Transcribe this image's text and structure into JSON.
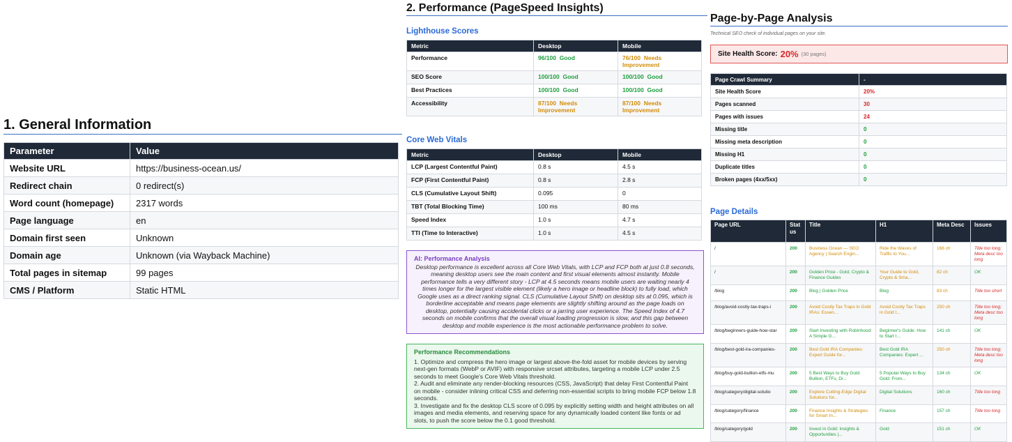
{
  "general": {
    "title": "1. General Information",
    "headers": [
      "Parameter",
      "Value"
    ],
    "rows": [
      [
        "Website URL",
        "https://business-ocean.us/"
      ],
      [
        "Redirect chain",
        "0 redirect(s)"
      ],
      [
        "Word count (homepage)",
        "2317 words"
      ],
      [
        "Page language",
        "en"
      ],
      [
        "Domain first seen",
        "Unknown"
      ],
      [
        "Domain age",
        "Unknown (via Wayback Machine)"
      ],
      [
        "Total pages in sitemap",
        "99 pages"
      ],
      [
        "CMS / Platform",
        "Static HTML"
      ]
    ]
  },
  "performance": {
    "title": "2. Performance (PageSpeed Insights)",
    "lighthouse": {
      "heading": "Lighthouse Scores",
      "headers": [
        "Metric",
        "Desktop",
        "Mobile"
      ],
      "rows": [
        [
          "Performance",
          {
            "score": "96/100",
            "rating": "Good",
            "color": "#1e9e3e"
          },
          {
            "score": "76/100",
            "rating": "Needs Improvement",
            "color": "#d18c0a"
          }
        ],
        [
          "SEO Score",
          {
            "score": "100/100",
            "rating": "Good",
            "color": "#1e9e3e"
          },
          {
            "score": "100/100",
            "rating": "Good",
            "color": "#1e9e3e"
          }
        ],
        [
          "Best Practices",
          {
            "score": "100/100",
            "rating": "Good",
            "color": "#1e9e3e"
          },
          {
            "score": "100/100",
            "rating": "Good",
            "color": "#1e9e3e"
          }
        ],
        [
          "Accessibility",
          {
            "score": "87/100",
            "rating": "Needs Improvement",
            "color": "#d18c0a"
          },
          {
            "score": "87/100",
            "rating": "Needs Improvement",
            "color": "#d18c0a"
          }
        ]
      ]
    },
    "vitals": {
      "heading": "Core Web Vitals",
      "headers": [
        "Metric",
        "Desktop",
        "Mobile"
      ],
      "rows": [
        [
          "LCP (Largest Contentful Paint)",
          "0.8 s",
          "4.5 s"
        ],
        [
          "FCP (First Contentful Paint)",
          "0.8 s",
          "2.8 s"
        ],
        [
          "CLS (Cumulative Layout Shift)",
          "0.095",
          "0"
        ],
        [
          "TBT (Total Blocking Time)",
          "100 ms",
          "80 ms"
        ],
        [
          "Speed Index",
          "1.0 s",
          "4.7 s"
        ],
        [
          "TTI (Time to Interactive)",
          "1.0 s",
          "4.5 s"
        ]
      ]
    },
    "ai": {
      "heading": "AI: Performance Analysis",
      "text": "Desktop performance is excellent across all Core Web Vitals, with LCP and FCP both at just 0.8 seconds, meaning desktop users see the main content and first visual elements almost instantly. Mobile performance tells a very different story - LCP at 4.5 seconds means mobile users are waiting nearly 4 times longer for the largest visible element (likely a hero image or headline block) to fully load, which Google uses as a direct ranking signal. CLS (Cumulative Layout Shift) on desktop sits at 0.095, which is borderline acceptable and means page elements are slightly shifting around as the page loads on desktop, potentially causing accidental clicks or a jarring user experience. The Speed Index of 4.7 seconds on mobile confirms that the overall visual loading progression is slow, and this gap between desktop and mobile experience is the most actionable performance problem to solve."
    },
    "recommendations": {
      "heading": "Performance Recommendations",
      "items": [
        "1. Optimize and compress the hero image or largest above-the-fold asset for mobile devices by serving next-gen formats (WebP or AVIF) with responsive srcset attributes, targeting a mobile LCP under 2.5 seconds to meet Google's Core Web Vitals threshold.",
        "2. Audit and eliminate any render-blocking resources (CSS, JavaScript) that delay First Contentful Paint on mobile - consider inlining critical CSS and deferring non-essential scripts to bring mobile FCP below 1.8 seconds.",
        "3. Investigate and fix the desktop CLS score of 0.095 by explicitly setting width and height attributes on all images and media elements, and reserving space for any dynamically loaded content like fonts or ad slots, to push the score below the 0.1 good threshold."
      ]
    }
  },
  "pages": {
    "title": "Page-by-Page Analysis",
    "subtitle": "Technical SEO check of individual pages on your site.",
    "health": {
      "label": "Site Health Score:",
      "value": "20%",
      "note": "(30 pages)"
    },
    "summary": {
      "headers": [
        "Page Crawl Summary",
        "-"
      ],
      "rows": [
        [
          "Site Health Score",
          "20%"
        ],
        [
          "Pages scanned",
          "30"
        ],
        [
          "Pages with issues",
          "24"
        ],
        [
          "Missing title",
          "0"
        ],
        [
          "Missing meta description",
          "0"
        ],
        [
          "Missing H1",
          "0"
        ],
        [
          "Duplicate titles",
          "0"
        ],
        [
          "Broken pages (4xx/5xx)",
          "0"
        ]
      ],
      "cell_colors": [
        [
          "#111111",
          "#d62828"
        ],
        [
          "#111111",
          "#d62828"
        ],
        [
          "#111111",
          "#d62828"
        ],
        [
          "#111111",
          "#1e9e3e"
        ],
        [
          "#111111",
          "#1e9e3e"
        ],
        [
          "#111111",
          "#1e9e3e"
        ],
        [
          "#111111",
          "#1e9e3e"
        ],
        [
          "#111111",
          "#1e9e3e"
        ]
      ]
    },
    "details": {
      "heading": "Page Details",
      "headers": [
        "Page URL",
        "Status",
        "Title",
        "H1",
        "Meta Desc",
        "Issues"
      ],
      "rows": [
        [
          "/",
          "200",
          "Business Ocean — SEO Agency | Search Engin...",
          "Ride the Waves of Traffic to You...",
          "166 ch",
          "Title too long; Meta desc too long"
        ],
        [
          "/",
          "200",
          "Golden Price - Gold, Crypto & Finance Guides",
          "Your Guide to Gold, Crypto & Sma...",
          "82 ch",
          "OK"
        ],
        [
          "/blog",
          "200",
          "Blog | Golden Price",
          "Blog",
          "83 ch",
          "Title too short"
        ],
        [
          "/blog/avoid-costly-tax-traps-i",
          "200",
          "Avoid Costly Tax Traps in Gold IRAs: Essen...",
          "Avoid Costly Tax Traps in Gold I...",
          "250 ch",
          "Title too long; Meta desc too long"
        ],
        [
          "/blog/beginners-guide-how-star",
          "200",
          "Start Investing with Robinhood: A Simple G...",
          "Beginner's Guide: How to Start I...",
          "141 ch",
          "OK"
        ],
        [
          "/blog/best-gold-ira-companies-",
          "200",
          "Best Gold IRA Companies: Expert Guide for...",
          "Best Gold IRA Companies: Expert ...",
          "250 ch",
          "Title too long; Meta desc too long"
        ],
        [
          "/blog/buy-gold-bullion-etfs-mu",
          "200",
          "5 Best Ways to Buy Gold: Bullion, ETFs, Di...",
          "5 Popular Ways to Buy Gold: From...",
          "134 ch",
          "OK"
        ],
        [
          "/blog/category/digital-solutio",
          "200",
          "Explore Cutting-Edge Digital Solutions for...",
          "Digital Solutions",
          "160 ch",
          "Title too long"
        ],
        [
          "/blog/category/finance",
          "200",
          "Finance Insights & Strategies for Smart In...",
          "Finance",
          "157 ch",
          "Title too long"
        ],
        [
          "/blog/category/gold",
          "200",
          "Invest in Gold: Insights & Opportunities |...",
          "Gold",
          "151 ch",
          "OK"
        ]
      ],
      "cell_colors": [
        [
          "#222222",
          "#1e9e3e",
          "#d18c0a",
          "#d18c0a",
          "#d18c0a",
          "#d62828"
        ],
        [
          "#222222",
          "#1e9e3e",
          "#1e9e3e",
          "#d18c0a",
          "#d18c0a",
          "#1e9e3e"
        ],
        [
          "#222222",
          "#1e9e3e",
          "#1e9e3e",
          "#1e9e3e",
          "#d18c0a",
          "#d62828"
        ],
        [
          "#222222",
          "#1e9e3e",
          "#d18c0a",
          "#d18c0a",
          "#d18c0a",
          "#d62828"
        ],
        [
          "#222222",
          "#1e9e3e",
          "#1e9e3e",
          "#1e9e3e",
          "#1e9e3e",
          "#1e9e3e"
        ],
        [
          "#222222",
          "#1e9e3e",
          "#d18c0a",
          "#1e9e3e",
          "#d18c0a",
          "#d62828"
        ],
        [
          "#222222",
          "#1e9e3e",
          "#1e9e3e",
          "#1e9e3e",
          "#1e9e3e",
          "#1e9e3e"
        ],
        [
          "#222222",
          "#1e9e3e",
          "#d18c0a",
          "#1e9e3e",
          "#1e9e3e",
          "#d62828"
        ],
        [
          "#222222",
          "#1e9e3e",
          "#d18c0a",
          "#1e9e3e",
          "#1e9e3e",
          "#d62828"
        ],
        [
          "#222222",
          "#1e9e3e",
          "#1e9e3e",
          "#1e9e3e",
          "#1e9e3e",
          "#1e9e3e"
        ]
      ]
    }
  }
}
